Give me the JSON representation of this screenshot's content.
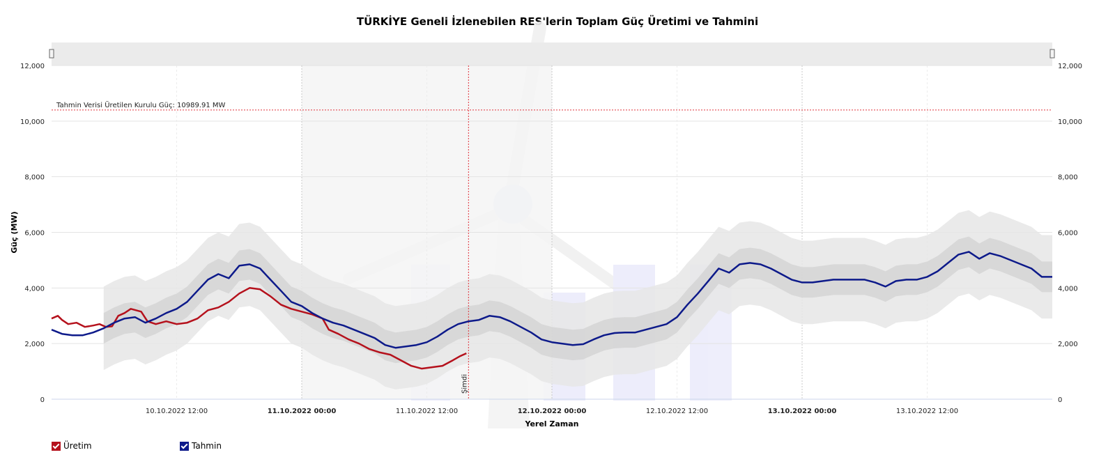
{
  "chart_data": {
    "type": "line",
    "title": "TÜRKİYE Geneli İzlenebilen RES'lerin Toplam Güç Üretimi ve Tahmini",
    "xlabel": "Yerel Zaman",
    "ylabel": "Güç (MW)",
    "ylim": [
      0,
      12000
    ],
    "y_ticks": [
      "0",
      "2,000",
      "4,000",
      "6,000",
      "8,000",
      "10,000",
      "12,000"
    ],
    "x_range_hours": [
      0,
      96
    ],
    "x_ticks": [
      {
        "h": 12,
        "label": "10.10.2022 12:00",
        "bold": false
      },
      {
        "h": 24,
        "label": "11.10.2022 00:00",
        "bold": true
      },
      {
        "h": 36,
        "label": "11.10.2022 12:00",
        "bold": false
      },
      {
        "h": 48,
        "label": "12.10.2022 00:00",
        "bold": true
      },
      {
        "h": 60,
        "label": "12.10.2022 12:00",
        "bold": false
      },
      {
        "h": 72,
        "label": "13.10.2022 00:00",
        "bold": true
      },
      {
        "h": 84,
        "label": "13.10.2022 12:00",
        "bold": false
      }
    ],
    "reference_line": {
      "value": 10400,
      "label": "Tahmin Verisi Üretilen Kurulu Güç: 10989.91 MW"
    },
    "now_marker": {
      "h": 40.0,
      "label": "Şimdi"
    },
    "series": [
      {
        "name": "Üretim",
        "color": "#b5111c",
        "points": [
          [
            0,
            2900
          ],
          [
            0.6,
            3000
          ],
          [
            1,
            2850
          ],
          [
            1.6,
            2700
          ],
          [
            2.4,
            2750
          ],
          [
            3.2,
            2600
          ],
          [
            4,
            2650
          ],
          [
            4.6,
            2700
          ],
          [
            5.2,
            2600
          ],
          [
            5.8,
            2620
          ],
          [
            6.4,
            3000
          ],
          [
            7,
            3100
          ],
          [
            7.6,
            3250
          ],
          [
            8.6,
            3150
          ],
          [
            9.2,
            2800
          ],
          [
            10,
            2700
          ],
          [
            11,
            2800
          ],
          [
            12,
            2700
          ],
          [
            13,
            2750
          ],
          [
            14,
            2900
          ],
          [
            15,
            3200
          ],
          [
            16,
            3300
          ],
          [
            17,
            3500
          ],
          [
            18,
            3800
          ],
          [
            19,
            4000
          ],
          [
            20,
            3950
          ],
          [
            21,
            3700
          ],
          [
            22,
            3400
          ],
          [
            23,
            3250
          ],
          [
            24,
            3150
          ],
          [
            25,
            3050
          ],
          [
            26,
            2900
          ],
          [
            26.6,
            2500
          ],
          [
            27.5,
            2350
          ],
          [
            28.5,
            2150
          ],
          [
            29.5,
            2000
          ],
          [
            30.5,
            1800
          ],
          [
            31.5,
            1680
          ],
          [
            32.5,
            1600
          ],
          [
            33.5,
            1400
          ],
          [
            34.5,
            1200
          ],
          [
            35.5,
            1100
          ],
          [
            36.5,
            1150
          ],
          [
            37.5,
            1200
          ],
          [
            38.5,
            1400
          ],
          [
            39.2,
            1550
          ],
          [
            39.8,
            1650
          ]
        ]
      },
      {
        "name": "Tahmin",
        "color": "#0d1a8a",
        "points": [
          [
            0,
            2500
          ],
          [
            1,
            2350
          ],
          [
            2,
            2300
          ],
          [
            3,
            2300
          ],
          [
            4,
            2400
          ],
          [
            5,
            2550
          ],
          [
            6,
            2750
          ],
          [
            7,
            2900
          ],
          [
            8,
            2950
          ],
          [
            9,
            2750
          ],
          [
            10,
            2900
          ],
          [
            11,
            3100
          ],
          [
            12,
            3250
          ],
          [
            13,
            3500
          ],
          [
            14,
            3900
          ],
          [
            15,
            4300
          ],
          [
            16,
            4500
          ],
          [
            17,
            4350
          ],
          [
            18,
            4800
          ],
          [
            19,
            4850
          ],
          [
            20,
            4700
          ],
          [
            21,
            4300
          ],
          [
            22,
            3900
          ],
          [
            23,
            3500
          ],
          [
            24,
            3350
          ],
          [
            25,
            3100
          ],
          [
            26,
            2900
          ],
          [
            27,
            2750
          ],
          [
            28,
            2650
          ],
          [
            29,
            2500
          ],
          [
            30,
            2350
          ],
          [
            31,
            2200
          ],
          [
            32,
            1950
          ],
          [
            33,
            1850
          ],
          [
            34,
            1900
          ],
          [
            35,
            1950
          ],
          [
            36,
            2050
          ],
          [
            37,
            2250
          ],
          [
            38,
            2500
          ],
          [
            39,
            2700
          ],
          [
            40,
            2800
          ],
          [
            41,
            2850
          ],
          [
            42,
            3000
          ],
          [
            43,
            2950
          ],
          [
            44,
            2800
          ],
          [
            45,
            2600
          ],
          [
            46,
            2400
          ],
          [
            47,
            2150
          ],
          [
            48,
            2050
          ],
          [
            49,
            2000
          ],
          [
            50,
            1950
          ],
          [
            51,
            1980
          ],
          [
            52,
            2150
          ],
          [
            53,
            2300
          ],
          [
            54,
            2380
          ],
          [
            55,
            2400
          ],
          [
            56,
            2400
          ],
          [
            57,
            2500
          ],
          [
            58,
            2600
          ],
          [
            59,
            2700
          ],
          [
            60,
            2950
          ],
          [
            61,
            3400
          ],
          [
            62,
            3800
          ],
          [
            63,
            4250
          ],
          [
            64,
            4700
          ],
          [
            65,
            4550
          ],
          [
            66,
            4850
          ],
          [
            67,
            4900
          ],
          [
            68,
            4850
          ],
          [
            69,
            4700
          ],
          [
            70,
            4500
          ],
          [
            71,
            4300
          ],
          [
            72,
            4200
          ],
          [
            73,
            4200
          ],
          [
            74,
            4250
          ],
          [
            75,
            4300
          ],
          [
            76,
            4300
          ],
          [
            77,
            4300
          ],
          [
            78,
            4300
          ],
          [
            79,
            4200
          ],
          [
            80,
            4050
          ],
          [
            81,
            4250
          ],
          [
            82,
            4300
          ],
          [
            83,
            4300
          ],
          [
            84,
            4400
          ],
          [
            85,
            4600
          ],
          [
            86,
            4900
          ],
          [
            87,
            5200
          ],
          [
            88,
            5300
          ],
          [
            89,
            5050
          ],
          [
            90,
            5250
          ],
          [
            91,
            5150
          ],
          [
            92,
            5000
          ],
          [
            93,
            4850
          ],
          [
            94,
            4700
          ],
          [
            95,
            4400
          ],
          [
            96,
            4400
          ]
        ]
      }
    ],
    "legend": [
      {
        "name": "Üretim",
        "color": "#b5111c"
      },
      {
        "name": "Tahmin",
        "color": "#0d1a8a"
      }
    ],
    "grid": true
  }
}
